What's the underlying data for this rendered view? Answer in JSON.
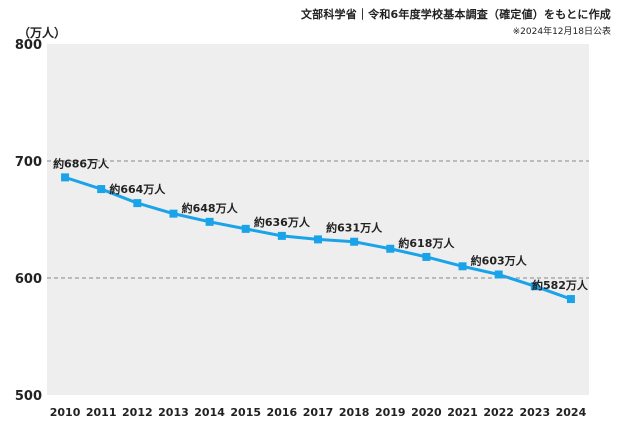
{
  "source": "文部科学省｜令和6年度学校基本調査（確定値）をもとに作成",
  "source_note": "※2024年12月18日公表",
  "chart_data": {
    "type": "line",
    "unit_label": "（万人）",
    "x": [
      "2010",
      "2011",
      "2012",
      "2013",
      "2014",
      "2015",
      "2016",
      "2017",
      "2018",
      "2019",
      "2020",
      "2021",
      "2022",
      "2023",
      "2024"
    ],
    "series": [
      {
        "values": [
          686,
          676,
          664,
          655,
          648,
          642,
          636,
          633,
          631,
          625,
          618,
          610,
          603,
          593,
          582
        ]
      }
    ],
    "ylim": [
      500,
      800
    ],
    "yticks": [
      800,
      700,
      600,
      500
    ],
    "dashed_gridlines": [
      700,
      600
    ],
    "data_labels": [
      {
        "index": 0,
        "text": "約686万人"
      },
      {
        "index": 2,
        "text": "約664万人"
      },
      {
        "index": 4,
        "text": "約648万人"
      },
      {
        "index": 6,
        "text": "約636万人"
      },
      {
        "index": 8,
        "text": "約631万人"
      },
      {
        "index": 10,
        "text": "約618万人"
      },
      {
        "index": 12,
        "text": "約603万人"
      },
      {
        "index": 14,
        "text": "約582万人"
      }
    ],
    "colors": {
      "line": "#1aa3e8",
      "background": "#eeeeee",
      "grid": "#888888"
    }
  }
}
